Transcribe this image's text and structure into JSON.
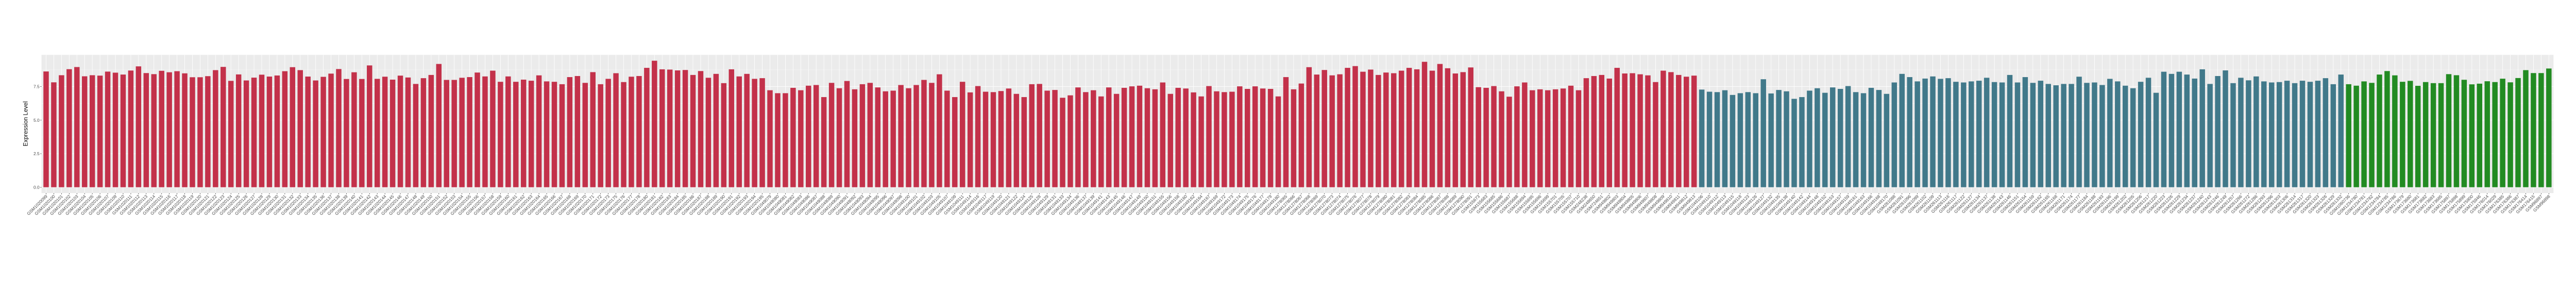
{
  "chart_data": {
    "type": "bar",
    "title": "",
    "xlabel": "",
    "ylabel": "Expression Level",
    "ylim": [
      -0.44,
      9.87
    ],
    "yticks": [
      0,
      2.5,
      5,
      7.5
    ],
    "ytick_labels": [
      "0.0",
      "2.5",
      "5.0",
      "7.5"
    ],
    "grid": true,
    "legend": "none",
    "background": "#EBEBEB",
    "groups": [
      {
        "color": "#C3314A",
        "categories": [
          "GSM1020099",
          "GSM1020100",
          "GSM1020101",
          "GSM1020102",
          "GSM1020103",
          "GSM1020104",
          "GSM1020105",
          "GSM1020106",
          "GSM1020107",
          "GSM1020109",
          "GSM1020110",
          "GSM1020111",
          "GSM1020112",
          "GSM1020113",
          "GSM1020114",
          "GSM1020115",
          "GSM1020116",
          "GSM1020117",
          "GSM1020118",
          "GSM1020119",
          "GSM1020120",
          "GSM1020121",
          "GSM1020122",
          "GSM1020123",
          "GSM1020124",
          "GSM1020125",
          "GSM1020126",
          "GSM1020127",
          "GSM1020128",
          "GSM1020129",
          "GSM1020130",
          "GSM1020131",
          "GSM1020132",
          "GSM1020133",
          "GSM1020134",
          "GSM1020135",
          "GSM1020136",
          "GSM1020137",
          "GSM1020138",
          "GSM1020139",
          "GSM1020140",
          "GSM1020141",
          "GSM1020142",
          "GSM1020143",
          "GSM1020144",
          "GSM1020145",
          "GSM1020146",
          "GSM1020147",
          "GSM1020148",
          "GSM1020149",
          "GSM1020150",
          "GSM1020151",
          "GSM1020152",
          "GSM1020153",
          "GSM1020154",
          "GSM1020155",
          "GSM1020156",
          "GSM1020157",
          "GSM1020158",
          "GSM1020159",
          "GSM1020160",
          "GSM1020161",
          "GSM1020162",
          "GSM1020163",
          "GSM1020164",
          "GSM1020165",
          "GSM1020166",
          "GSM1020167",
          "GSM1020168",
          "GSM1020169",
          "GSM1020170",
          "GSM1020171",
          "GSM1020172",
          "GSM1020173",
          "GSM1020175",
          "GSM1020176",
          "GSM1020177",
          "GSM1020178",
          "GSM1020180",
          "GSM1020181",
          "GSM1020182",
          "GSM1020183",
          "GSM1020184",
          "GSM1020185",
          "GSM1020186",
          "GSM1020187",
          "GSM1020188",
          "GSM1020189",
          "GSM1020190",
          "GSM1020191",
          "GSM1020192",
          "GSM1020193",
          "GSM1020194",
          "GSM1020195",
          "GSM1049079",
          "GSM1049080",
          "GSM1049081",
          "GSM1049082",
          "GSM1049083",
          "GSM1049086",
          "GSM1049087",
          "GSM1049088",
          "GSM1049089",
          "GSM1049090",
          "GSM1049091",
          "GSM1049092",
          "GSM1049093",
          "GSM1049094",
          "GSM1049095",
          "GSM1049096",
          "GSM1049097",
          "GSM1049098",
          "GSM1049100",
          "GSM1049101",
          "GSM1049102",
          "GSM1049103",
          "GSM1049105",
          "GSM1049107",
          "GSM1049109",
          "GSM1049111",
          "GSM1049114",
          "GSM1049116",
          "GSM1049117",
          "GSM1049119",
          "GSM1049120",
          "GSM1049121",
          "GSM1049122",
          "GSM1049124",
          "GSM1049125",
          "GSM1049128",
          "GSM1049129",
          "GSM1049131",
          "GSM1049133",
          "GSM1049134",
          "GSM1049136",
          "GSM1049137",
          "GSM1049139",
          "GSM1049141",
          "GSM1049143",
          "GSM1049145",
          "GSM1049146",
          "GSM1049147",
          "GSM1049149",
          "GSM1049150",
          "GSM1049151",
          "GSM1049155",
          "GSM1049156",
          "GSM1049158",
          "GSM1049160",
          "GSM1049162",
          "GSM1049164",
          "GSM1049167",
          "GSM1049169",
          "GSM1049172",
          "GSM1049173",
          "GSM1049174",
          "GSM1049175",
          "GSM1049176",
          "GSM1049177",
          "GSM1049179",
          "GSM1049180",
          "GSM1278065",
          "GSM1278066",
          "GSM1278067",
          "GSM1278068",
          "GSM1278069",
          "GSM1278070",
          "GSM1278073",
          "GSM1278074",
          "GSM1278075",
          "GSM1278076",
          "GSM1278077",
          "GSM1278078",
          "GSM1278079",
          "GSM1278080",
          "GSM1278081",
          "GSM1278082",
          "GSM1278083",
          "GSM1278084",
          "GSM1278085",
          "GSM1278086",
          "GSM1278087",
          "GSM1278088",
          "GSM1278089",
          "GSM1278090",
          "GSM1278091",
          "GSM155673",
          "GSM155683",
          "GSM155685",
          "GSM155686",
          "GSM155687",
          "GSM155688",
          "GSM155694",
          "GSM155695",
          "GSM155696",
          "GSM155699",
          "GSM155701",
          "GSM155705",
          "GSM155707",
          "GSM155710",
          "GSM248238",
          "GSM248650",
          "GSM724651",
          "GSM949802",
          "GSM949803",
          "GSM949804",
          "GSM949805",
          "GSM949806",
          "GSM949807",
          "GSM949808",
          "GSM949809",
          "GSM949810",
          "GSM949811",
          "GSM949812",
          "GSM949813"
        ],
        "values": [
          8.63,
          7.82,
          8.35,
          8.8,
          8.96,
          8.27,
          8.35,
          8.32,
          8.62,
          8.54,
          8.4,
          8.7,
          9.01,
          8.51,
          8.43,
          8.68,
          8.57,
          8.65,
          8.49,
          8.2,
          8.2,
          8.28,
          8.73,
          8.97,
          7.93,
          8.41,
          7.96,
          8.17,
          8.39,
          8.25,
          8.33,
          8.65,
          8.95,
          8.73,
          8.25,
          7.96,
          8.23,
          8.47,
          8.81,
          8.07,
          8.57,
          8.07,
          9.08,
          8.08,
          8.24,
          8.02,
          8.32,
          8.18,
          7.7,
          8.13,
          8.37,
          9.19,
          8.0,
          8.0,
          8.16,
          8.21,
          8.55,
          8.26,
          8.69,
          7.86,
          8.26,
          7.86,
          8.02,
          7.94,
          8.34,
          7.89,
          7.86,
          7.68,
          8.21,
          8.29,
          7.78,
          8.58,
          7.68,
          8.08,
          8.5,
          7.84,
          8.24,
          8.29,
          8.9,
          9.43,
          8.79,
          8.77,
          8.71,
          8.74,
          8.37,
          8.66,
          8.16,
          8.45,
          7.76,
          8.79,
          8.26,
          8.45,
          8.08,
          8.13,
          7.23,
          7.01,
          7.01,
          7.41,
          7.23,
          7.57,
          7.62,
          6.72,
          7.78,
          7.38,
          7.92,
          7.3,
          7.68,
          7.78,
          7.44,
          7.15,
          7.2,
          7.62,
          7.38,
          7.62,
          8.0,
          7.78,
          8.42,
          7.2,
          6.72,
          7.86,
          7.07,
          7.54,
          7.12,
          7.09,
          7.17,
          7.36,
          6.96,
          6.72,
          7.68,
          7.7,
          7.2,
          7.25,
          6.67,
          6.85,
          7.44,
          7.09,
          7.23,
          6.77,
          7.44,
          6.96,
          7.41,
          7.52,
          7.57,
          7.38,
          7.3,
          7.81,
          6.96,
          7.41,
          7.36,
          7.07,
          6.77,
          7.54,
          7.15,
          7.09,
          7.12,
          7.52,
          7.33,
          7.52,
          7.36,
          7.33,
          6.77,
          8.21,
          7.3,
          7.73,
          8.95,
          8.4,
          8.74,
          8.34,
          8.42,
          8.9,
          9.03,
          8.61,
          8.77,
          8.37,
          8.55,
          8.5,
          8.69,
          8.9,
          8.79,
          9.35,
          8.69,
          9.19,
          8.87,
          8.48,
          8.58,
          8.93,
          7.46,
          7.41,
          7.54,
          7.15,
          6.75,
          7.52,
          7.81,
          7.23,
          7.3,
          7.23,
          7.3,
          7.36,
          7.57,
          7.23,
          8.13,
          8.29,
          8.37,
          8.1,
          8.9,
          8.48,
          8.5,
          8.42,
          8.34,
          7.84,
          8.69,
          8.58,
          8.37,
          8.24,
          8.32
        ]
      },
      {
        "color": "#41798A",
        "categories": [
          "GSM1049106",
          "GSM1049110",
          "GSM1049112",
          "GSM1049113",
          "GSM1049115",
          "GSM1049118",
          "GSM1049123",
          "GSM1049126",
          "GSM1049127",
          "GSM1049132",
          "GSM1049135",
          "GSM1049138",
          "GSM1049140",
          "GSM1049142",
          "GSM1049144",
          "GSM1049148",
          "GSM1049152",
          "GSM1049153",
          "GSM1049157",
          "GSM1049159",
          "GSM1049161",
          "GSM1049163",
          "GSM1049166",
          "GSM1049168",
          "GSM1049170",
          "GSM261088",
          "GSM261091",
          "GSM261096",
          "GSM261099",
          "GSM261102",
          "GSM261109",
          "GSM261113",
          "GSM261116",
          "GSM261117",
          "GSM261122",
          "GSM261127",
          "GSM261134",
          "GSM261137",
          "GSM261138",
          "GSM261143",
          "GSM261146",
          "GSM261151",
          "GSM261154",
          "GSM261159",
          "GSM261162",
          "GSM261165",
          "GSM261168",
          "GSM261171",
          "GSM261174",
          "GSM261177",
          "GSM261184",
          "GSM261188",
          "GSM261193",
          "GSM261196",
          "GSM261199",
          "GSM261202",
          "GSM261205",
          "GSM261206",
          "GSM261217",
          "GSM261220",
          "GSM261223",
          "GSM261226",
          "GSM261229",
          "GSM261234",
          "GSM261237",
          "GSM261240",
          "GSM261243",
          "GSM261246",
          "GSM261249",
          "GSM261257",
          "GSM261266",
          "GSM261272",
          "GSM261286",
          "GSM261293",
          "GSM261296",
          "GSM261303",
          "GSM261306",
          "GSM261314",
          "GSM261317",
          "GSM261320",
          "GSM261323",
          "GSM261326",
          "GSM261329",
          "GSM261332"
        ],
        "values": [
          7.28,
          7.12,
          7.09,
          7.23,
          6.88,
          7.01,
          7.09,
          7.01,
          8.05,
          6.99,
          7.25,
          7.15,
          6.59,
          6.72,
          7.2,
          7.38,
          7.04,
          7.44,
          7.33,
          7.54,
          7.09,
          7.01,
          7.41,
          7.25,
          6.96,
          7.81,
          8.45,
          8.21,
          7.89,
          8.1,
          8.26,
          8.08,
          8.13,
          7.86,
          7.81,
          7.89,
          7.94,
          8.16,
          7.84,
          7.81,
          8.37,
          7.81,
          8.21,
          7.78,
          7.94,
          7.7,
          7.6,
          7.7,
          7.7,
          8.24,
          7.78,
          7.81,
          7.62,
          8.08,
          7.89,
          7.57,
          7.38,
          7.86,
          8.16,
          7.04,
          8.61,
          8.45,
          8.61,
          8.4,
          8.1,
          8.79,
          7.7,
          8.29,
          8.71,
          7.76,
          8.16,
          7.97,
          8.26,
          7.89,
          7.81,
          7.84,
          7.94,
          7.76,
          7.94,
          7.86,
          7.94,
          8.13,
          7.68,
          8.4
        ]
      },
      {
        "color": "#228B22",
        "categories": [
          "GSM1060736",
          "GSM1234780",
          "GSM1234781",
          "GSM1234782",
          "GSM1234784",
          "GSM1234785",
          "GSM1234786",
          "GSM173679",
          "GSM173680",
          "GSM173681",
          "GSM173682",
          "GSM173683",
          "GSM173685",
          "GSM175897",
          "GSM175898",
          "GSM175899",
          "GSM175900",
          "GSM175946",
          "GSM176014",
          "GSM176029",
          "GSM176385",
          "GSM176386",
          "GSM176387",
          "GSM176414",
          "GSM176415",
          "GSM96897",
          "GSM96898"
        ],
        "values": [
          7.68,
          7.57,
          7.89,
          7.78,
          8.4,
          8.66,
          8.34,
          7.86,
          7.93,
          7.56,
          7.84,
          7.76,
          7.76,
          8.43,
          8.35,
          8.01,
          7.67,
          7.72,
          7.9,
          7.84,
          8.09,
          7.82,
          8.14,
          8.73,
          8.51,
          8.51,
          8.85
        ]
      }
    ]
  }
}
